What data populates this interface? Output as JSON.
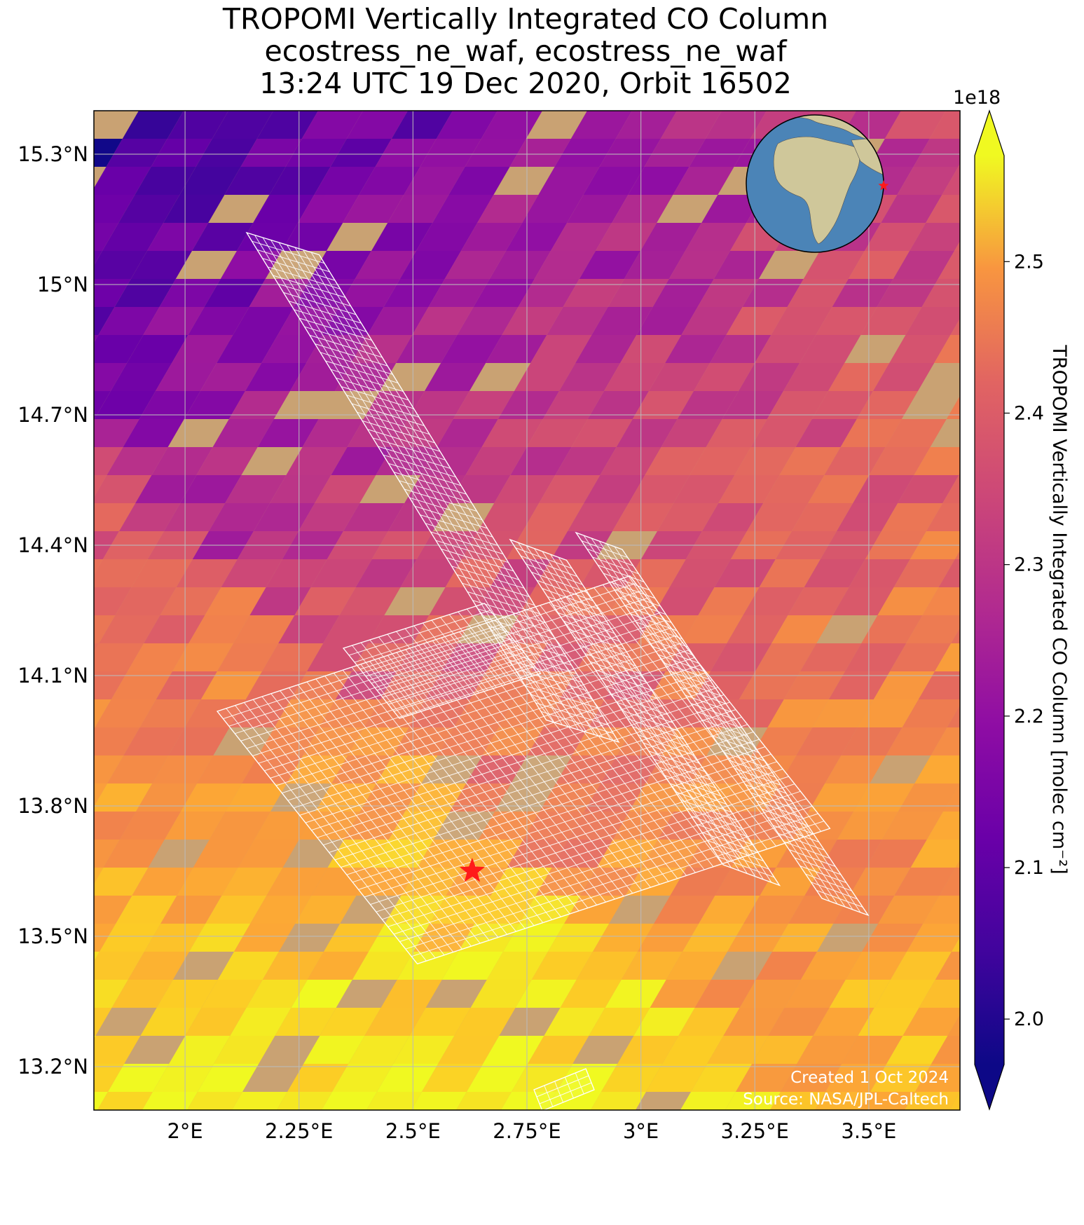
{
  "title": {
    "line1": "TROPOMI Vertically Integrated CO Column",
    "line2": "ecostress_ne_waf, ecostress_ne_waf",
    "line3": "13:24 UTC 19 Dec 2020, Orbit 16502"
  },
  "map": {
    "lon_range": [
      1.8,
      3.7
    ],
    "lat_range": [
      13.1,
      15.4
    ],
    "lon_ticks": [
      {
        "value": 2.0,
        "label": "2°E"
      },
      {
        "value": 2.25,
        "label": "2.25°E"
      },
      {
        "value": 2.5,
        "label": "2.5°E"
      },
      {
        "value": 2.75,
        "label": "2.75°E"
      },
      {
        "value": 3.0,
        "label": "3°E"
      },
      {
        "value": 3.25,
        "label": "3.25°E"
      },
      {
        "value": 3.5,
        "label": "3.5°E"
      }
    ],
    "lat_ticks": [
      {
        "value": 15.3,
        "label": "15.3°N"
      },
      {
        "value": 15.0,
        "label": "15°N"
      },
      {
        "value": 14.7,
        "label": "14.7°N"
      },
      {
        "value": 14.4,
        "label": "14.4°N"
      },
      {
        "value": 14.1,
        "label": "14.1°N"
      },
      {
        "value": 13.8,
        "label": "13.8°N"
      },
      {
        "value": 13.5,
        "label": "13.5°N"
      },
      {
        "value": 13.2,
        "label": "13.2°N"
      }
    ],
    "grid": true,
    "target": {
      "lon": 2.63,
      "lat": 13.65,
      "color": "#ff1a1a"
    },
    "colormap": "plasma",
    "land_color": "#c9a273"
  },
  "colorbar": {
    "vmin": 1.97,
    "vmax": 2.57,
    "extend": "both",
    "multiplier": "1e18",
    "ticks": [
      "2.0",
      "2.1",
      "2.2",
      "2.3",
      "2.4",
      "2.5"
    ],
    "label": "TROPOMI Vertically Integrated CO Column [molec cm⁻²]"
  },
  "globe": {
    "ocean_color": "#4b84b7",
    "land_color": "#cfc79a",
    "marker_color": "#ff1a1a"
  },
  "footer": {
    "created": "Created 1 Oct 2024",
    "source": "Source: NASA/JPL-Caltech"
  }
}
